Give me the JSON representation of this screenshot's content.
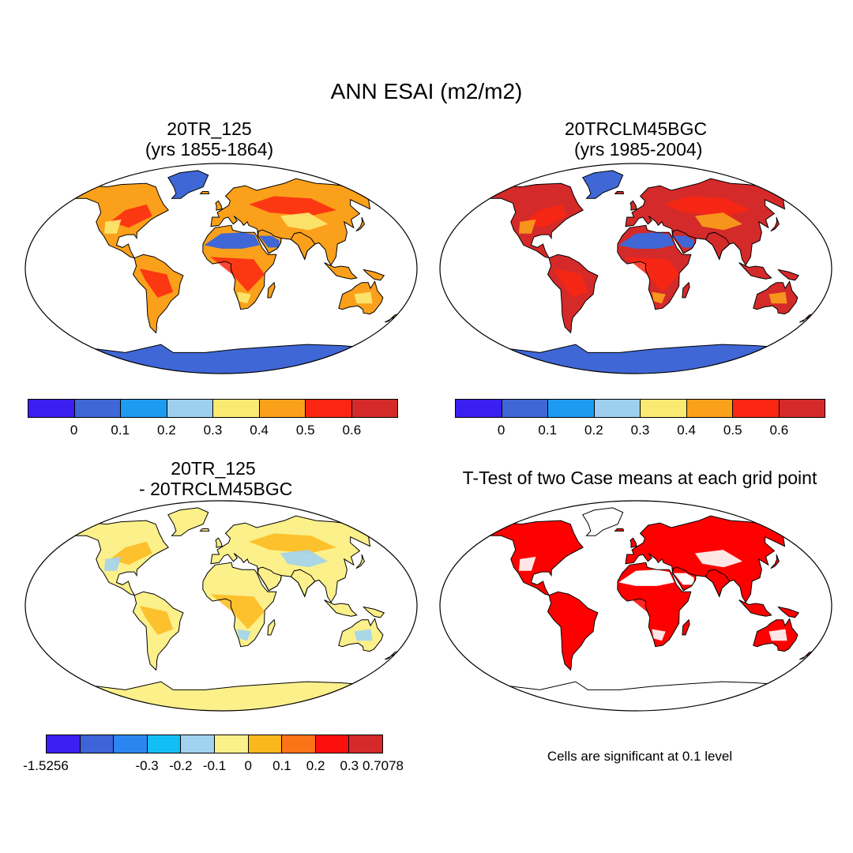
{
  "title": "ANN ESAI (m2/m2)",
  "panels": [
    {
      "id": "p1",
      "title_line1": "20TR_125",
      "title_line2": "(yrs 1855-1864)"
    },
    {
      "id": "p2",
      "title_line1": "20TRCLM45BGC",
      "title_line2": " (yrs 1985-2004)"
    },
    {
      "id": "p3",
      "title_line1": "20TR_125",
      "title_line2": " - 20TRCLM45BGC"
    },
    {
      "id": "p4",
      "title_line1": "T-Test of two Case means at each grid point"
    }
  ],
  "colorbars": {
    "absolute": {
      "colors": [
        "#3b1ff0",
        "#3f67d6",
        "#1c9bf0",
        "#9fcfee",
        "#fbea72",
        "#fba01b",
        "#fb2611",
        "#d42a2a"
      ],
      "labels": [
        "0",
        "0.1",
        "0.2",
        "0.3",
        "0.4",
        "0.5",
        "0.6"
      ]
    },
    "difference": {
      "colors": [
        "#3b1ff0",
        "#3f63d9",
        "#2b86f0",
        "#12bff5",
        "#a1d3ef",
        "#fbf08a",
        "#fbb81c",
        "#fb7417",
        "#fb0f0f",
        "#d42a2a"
      ],
      "labels": [
        "-1.5256",
        "-0.3",
        "-0.2",
        "-0.1",
        "0",
        "0.1",
        "0.2",
        "0.3",
        "0.7078"
      ]
    }
  },
  "footnote": "Cells are significant at 0.1 level",
  "map_colors": {
    "ocean": "#ffffff",
    "p1": {
      "land": "#fba01b",
      "hot": "#fb2611",
      "cool": "#fbea72",
      "desert": "#3f67d6",
      "ice": "#3f67d6"
    },
    "p2": {
      "land": "#d42a2a",
      "hot": "#fb2611",
      "cool": "#fba01b",
      "desert": "#3f67d6",
      "ice": "#3f67d6"
    },
    "p3": {
      "land": "#fbf08a",
      "hot": "#fbb81c",
      "cool": "#a1d3ef",
      "desert": "#fbf08a",
      "ice": "#fbf08a"
    },
    "p4": {
      "land": "#ff0000",
      "hot": "#ff0000",
      "cool": "#ffffff",
      "desert": "#ffffff",
      "ice": "#ffffff"
    }
  }
}
